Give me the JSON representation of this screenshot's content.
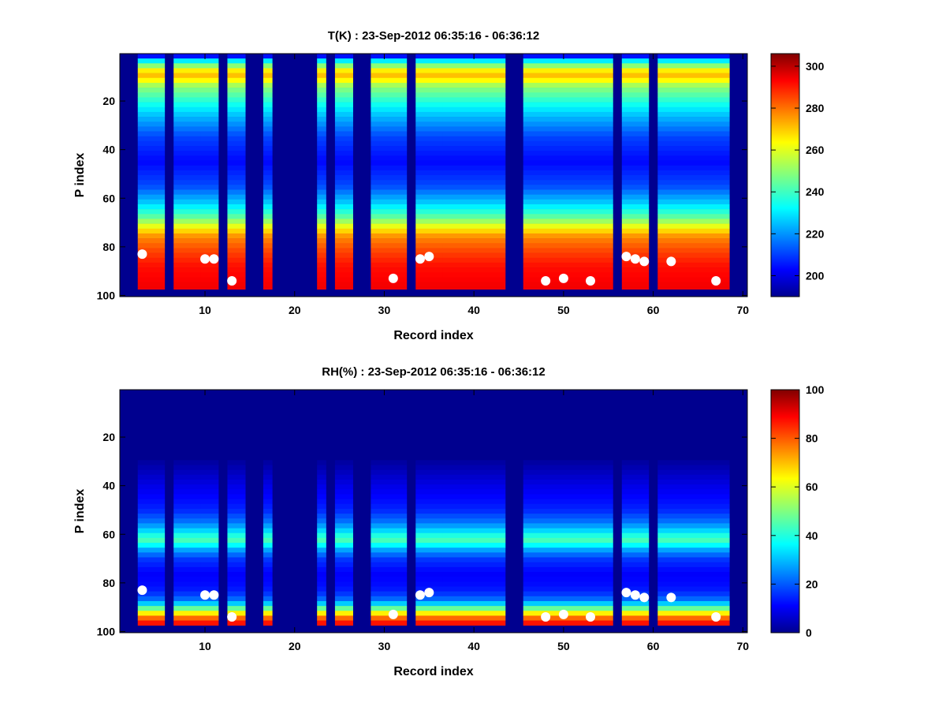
{
  "chart_data": [
    {
      "type": "heatmap",
      "title": "T(K) : 23-Sep-2012 06:35:16 - 06:36:12",
      "xlabel": "Record index",
      "ylabel": "P index",
      "xlim": [
        0.5,
        70.5
      ],
      "ylim": [
        0.5,
        100.5
      ],
      "y_reversed": true,
      "xticks": [
        10,
        20,
        30,
        40,
        50,
        60,
        70
      ],
      "yticks": [
        20,
        40,
        60,
        80,
        100
      ],
      "colormap": "jet",
      "clim": [
        190,
        306
      ],
      "colorbar_ticks": [
        200,
        220,
        240,
        260,
        280,
        300
      ],
      "background_color": "#00008f",
      "data_rows": [
        1,
        97
      ],
      "record_columns": [
        [
          3,
          5
        ],
        [
          7,
          9
        ],
        [
          10,
          11
        ],
        [
          13,
          14
        ],
        [
          17,
          17
        ],
        [
          23,
          23
        ],
        [
          25,
          26
        ],
        [
          29,
          29
        ],
        [
          30,
          32
        ],
        [
          34,
          36
        ],
        [
          37,
          43
        ],
        [
          46,
          55
        ],
        [
          57,
          59
        ],
        [
          61,
          68
        ]
      ],
      "profile": [
        [
          1,
          200
        ],
        [
          4,
          238
        ],
        [
          8,
          268
        ],
        [
          10,
          270
        ],
        [
          14,
          250
        ],
        [
          25,
          228
        ],
        [
          35,
          212
        ],
        [
          45,
          205
        ],
        [
          55,
          213
        ],
        [
          62,
          228
        ],
        [
          68,
          245
        ],
        [
          72,
          262
        ],
        [
          76,
          276
        ],
        [
          82,
          284
        ],
        [
          88,
          290
        ],
        [
          97,
          293
        ]
      ],
      "markers": {
        "color": "#ffffff",
        "points": [
          [
            3,
            83
          ],
          [
            10,
            85
          ],
          [
            11,
            85
          ],
          [
            13,
            94
          ],
          [
            31,
            93
          ],
          [
            34,
            85
          ],
          [
            35,
            84
          ],
          [
            48,
            94
          ],
          [
            50,
            93
          ],
          [
            53,
            94
          ],
          [
            57,
            84
          ],
          [
            58,
            85
          ],
          [
            59,
            86
          ],
          [
            62,
            86
          ],
          [
            67,
            94
          ]
        ]
      }
    },
    {
      "type": "heatmap",
      "title": "RH(%) : 23-Sep-2012 06:35:16 - 06:36:12",
      "xlabel": "Record index",
      "ylabel": "P index",
      "xlim": [
        0.5,
        70.5
      ],
      "ylim": [
        0.5,
        100.5
      ],
      "y_reversed": true,
      "xticks": [
        10,
        20,
        30,
        40,
        50,
        60,
        70
      ],
      "yticks": [
        20,
        40,
        60,
        80,
        100
      ],
      "colormap": "jet",
      "clim": [
        0,
        100
      ],
      "colorbar_ticks": [
        0,
        20,
        40,
        60,
        80,
        100
      ],
      "background_color": "#00008f",
      "data_rows": [
        30,
        97
      ],
      "record_columns": [
        [
          3,
          5
        ],
        [
          7,
          9
        ],
        [
          10,
          11
        ],
        [
          13,
          14
        ],
        [
          17,
          17
        ],
        [
          23,
          23
        ],
        [
          25,
          26
        ],
        [
          29,
          29
        ],
        [
          30,
          32
        ],
        [
          34,
          36
        ],
        [
          37,
          43
        ],
        [
          46,
          55
        ],
        [
          57,
          59
        ],
        [
          61,
          68
        ]
      ],
      "profile": [
        [
          30,
          3
        ],
        [
          40,
          10
        ],
        [
          50,
          16
        ],
        [
          55,
          24
        ],
        [
          58,
          32
        ],
        [
          61,
          42
        ],
        [
          63,
          45
        ],
        [
          66,
          30
        ],
        [
          70,
          18
        ],
        [
          76,
          12
        ],
        [
          82,
          14
        ],
        [
          86,
          20
        ],
        [
          89,
          35
        ],
        [
          92,
          60
        ],
        [
          94,
          75
        ],
        [
          97,
          88
        ]
      ],
      "markers": {
        "color": "#ffffff",
        "points": [
          [
            3,
            83
          ],
          [
            10,
            85
          ],
          [
            11,
            85
          ],
          [
            13,
            94
          ],
          [
            31,
            93
          ],
          [
            34,
            85
          ],
          [
            35,
            84
          ],
          [
            48,
            94
          ],
          [
            50,
            93
          ],
          [
            53,
            94
          ],
          [
            57,
            84
          ],
          [
            58,
            85
          ],
          [
            59,
            86
          ],
          [
            62,
            86
          ],
          [
            67,
            94
          ]
        ]
      }
    }
  ]
}
